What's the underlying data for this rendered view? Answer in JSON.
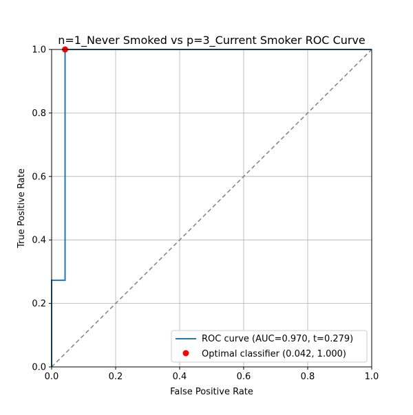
{
  "chart_data": {
    "type": "line",
    "title": "n=1_Never Smoked vs p=3_Current Smoker ROC Curve",
    "xlabel": "False Positive Rate",
    "ylabel": "True Positive Rate",
    "xlim": [
      0.0,
      1.0
    ],
    "ylim": [
      0.0,
      1.0
    ],
    "xticks": [
      0.0,
      0.2,
      0.4,
      0.6,
      0.8,
      1.0
    ],
    "yticks": [
      0.0,
      0.2,
      0.4,
      0.6,
      0.8,
      1.0
    ],
    "xtick_labels": [
      "0.0",
      "0.2",
      "0.4",
      "0.6",
      "0.8",
      "1.0"
    ],
    "ytick_labels": [
      "0.0",
      "0.2",
      "0.4",
      "0.6",
      "0.8",
      "1.0"
    ],
    "grid": true,
    "legend_position": "bottom-right",
    "series": [
      {
        "name": "ROC curve (AUC=0.970, t=0.279)",
        "kind": "step-line",
        "color": "#1f77b4",
        "x": [
          0.0,
          0.0,
          0.0,
          0.042,
          0.042,
          1.0
        ],
        "y": [
          0.0,
          0.0,
          0.273,
          0.273,
          1.0,
          1.0
        ]
      },
      {
        "name": "Optimal classifier (0.042, 1.000)",
        "kind": "point",
        "color": "#ff0000",
        "x": [
          0.042
        ],
        "y": [
          1.0
        ]
      }
    ],
    "reference_line": {
      "style": "dashed",
      "color": "#808080",
      "x": [
        0.0,
        1.0
      ],
      "y": [
        0.0,
        1.0
      ]
    }
  }
}
